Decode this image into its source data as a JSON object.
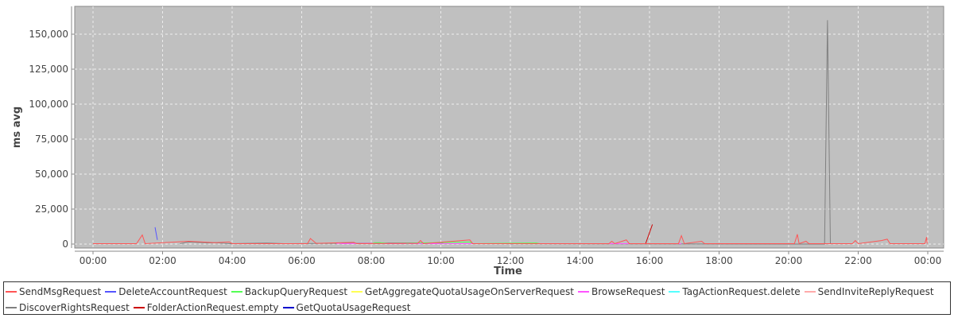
{
  "chart_data": {
    "type": "line",
    "xlabel": "Time",
    "ylabel": "ms avg",
    "ylim": [
      -2840,
      169900
    ],
    "x_ticks": [
      "00:00",
      "02:00",
      "04:00",
      "06:00",
      "08:00",
      "10:00",
      "12:00",
      "14:00",
      "16:00",
      "18:00",
      "20:00",
      "22:00",
      "00:00"
    ],
    "y_ticks": [
      0,
      25000,
      50000,
      75000,
      100000,
      125000,
      150000
    ],
    "y_tick_labels": [
      "0",
      "25,000",
      "50,000",
      "75,000",
      "100,000",
      "125,000",
      "150,000"
    ],
    "grid": true,
    "legend": "bottom",
    "background": "#c0c0c0",
    "series": [
      {
        "name": "SendMsgRequest",
        "color": "#ff5555",
        "points": [
          [
            "00:00",
            300
          ],
          [
            "01:15",
            300
          ],
          [
            "01:25",
            6500
          ],
          [
            "01:30",
            300
          ],
          [
            "02:45",
            2000
          ],
          [
            "03:30",
            1000
          ],
          [
            "03:55",
            1500
          ],
          [
            "04:00",
            300
          ],
          [
            "06:10",
            300
          ],
          [
            "06:15",
            4000
          ],
          [
            "06:25",
            500
          ],
          [
            "07:30",
            1200
          ],
          [
            "07:35",
            300
          ],
          [
            "09:20",
            500
          ],
          [
            "09:25",
            2500
          ],
          [
            "09:30",
            300
          ],
          [
            "10:50",
            3000
          ],
          [
            "10:55",
            300
          ],
          [
            "14:50",
            300
          ],
          [
            "14:55",
            2000
          ],
          [
            "15:00",
            300
          ],
          [
            "15:20",
            3000
          ],
          [
            "15:25",
            300
          ],
          [
            "16:50",
            300
          ],
          [
            "16:55",
            6000
          ],
          [
            "17:00",
            300
          ],
          [
            "17:30",
            2000
          ],
          [
            "17:35",
            300
          ],
          [
            "20:10",
            300
          ],
          [
            "20:15",
            7000
          ],
          [
            "20:18",
            300
          ],
          [
            "20:30",
            2000
          ],
          [
            "20:35",
            300
          ],
          [
            "21:50",
            300
          ],
          [
            "21:55",
            2500
          ],
          [
            "22:00",
            300
          ],
          [
            "22:40",
            2500
          ],
          [
            "22:50",
            3500
          ],
          [
            "22:55",
            300
          ],
          [
            "23:55",
            300
          ],
          [
            "23:58",
            5000
          ],
          [
            "23:59",
            300
          ]
        ]
      },
      {
        "name": "DeleteAccountRequest",
        "color": "#5555ff",
        "points": [
          [
            "01:47",
            12000
          ],
          [
            "01:51",
            3000
          ]
        ]
      },
      {
        "name": "BackupQueryRequest",
        "color": "#55ff55",
        "points": [
          [
            "08:00",
            300
          ],
          [
            "08:05",
            1000
          ],
          [
            "08:15",
            1000
          ],
          [
            "08:30",
            300
          ],
          [
            "10:50",
            1500
          ],
          [
            "10:55",
            300
          ],
          [
            "12:45",
            800
          ],
          [
            "12:50",
            300
          ]
        ]
      },
      {
        "name": "GetAggregateQuotaUsageOnServerRequest",
        "color": "#ffff55",
        "points": [
          [
            "08:00",
            200
          ],
          [
            "08:05",
            400
          ]
        ]
      },
      {
        "name": "BrowseRequest",
        "color": "#ff55ff",
        "points": [
          [
            "07:00",
            300
          ],
          [
            "07:05",
            700
          ],
          [
            "07:10",
            300
          ],
          [
            "08:00",
            500
          ],
          [
            "08:10",
            300
          ],
          [
            "16:55",
            300
          ]
        ]
      },
      {
        "name": "TagActionRequest.delete",
        "color": "#55ffff",
        "points": [
          [
            "09:00",
            200
          ],
          [
            "09:05",
            300
          ]
        ]
      },
      {
        "name": "SendInviteReplyRequest",
        "color": "#ffaaaa",
        "points": [
          [
            "05:00",
            200
          ],
          [
            "05:05",
            300
          ]
        ]
      },
      {
        "name": "DiscoverRightsRequest",
        "color": "#808080",
        "points": [
          [
            "02:30",
            300
          ],
          [
            "02:45",
            1500
          ],
          [
            "03:20",
            800
          ],
          [
            "03:30",
            1000
          ],
          [
            "03:55",
            300
          ],
          [
            "05:00",
            700
          ],
          [
            "05:30",
            300
          ],
          [
            "09:00",
            800
          ],
          [
            "10:00",
            800
          ],
          [
            "10:05",
            300
          ],
          [
            "21:02",
            0
          ],
          [
            "21:07",
            160000
          ],
          [
            "21:12",
            0
          ]
        ]
      },
      {
        "name": "FolderActionRequest.empty",
        "color": "#cc0000",
        "points": [
          [
            "15:53",
            0
          ],
          [
            "16:05",
            14000
          ]
        ]
      },
      {
        "name": "GetQuotaUsageRequest",
        "color": "#0000cc",
        "points": [
          [
            "12:00",
            200
          ],
          [
            "12:05",
            300
          ]
        ]
      }
    ]
  }
}
